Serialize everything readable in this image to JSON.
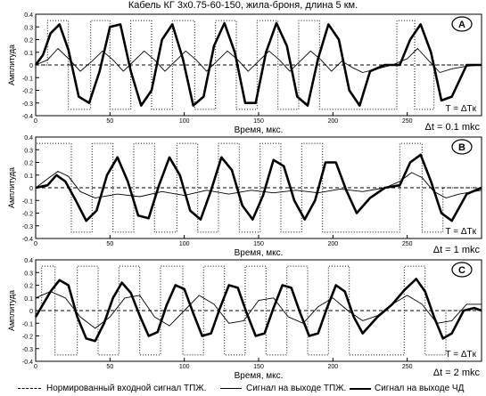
{
  "title": "Кабель КГ 3х0.75-60-150, жила-броня, длина 5 км.",
  "legend": {
    "input": "Нормированный входной сигнал ТПЖ.",
    "tpzh": "Сигнал на выходе ТПЖ.",
    "chd": "Сигнал на выходе  ЧД"
  },
  "colors": {
    "line": "#000000",
    "background": "#ffffff"
  },
  "chart_data": [
    {
      "type": "line",
      "panel_label": "A",
      "xlabel": "Время,  мкс.",
      "ylabel": "Амплитуда",
      "xlim": [
        0,
        300
      ],
      "ylim": [
        -0.4,
        0.4
      ],
      "x_ticks": [
        0,
        50,
        100,
        150,
        200,
        250
      ],
      "y_ticks": [
        0.4,
        0.3,
        0.2,
        0.1,
        0,
        -0.1,
        -0.2,
        -0.3,
        -0.4
      ],
      "grid": false,
      "annotation_T": "T = ΔTк",
      "annotation_dt": "Δt = 0.1 mkc",
      "series": [
        {
          "style": "dotted",
          "x": [
            0,
            8,
            8,
            22,
            22,
            37,
            37,
            50,
            50,
            64,
            64,
            78,
            78,
            92,
            92,
            107,
            107,
            121,
            121,
            135,
            135,
            149,
            149,
            163,
            163,
            177,
            177,
            191,
            191,
            205,
            205,
            243,
            243,
            255,
            255,
            268,
            268,
            300
          ],
          "values": [
            0,
            0,
            0.35,
            0.35,
            -0.35,
            -0.35,
            0.35,
            0.35,
            -0.35,
            -0.35,
            0.35,
            0.35,
            -0.35,
            -0.35,
            0.35,
            0.35,
            -0.35,
            -0.35,
            0.35,
            0.35,
            -0.35,
            -0.35,
            0.35,
            0.35,
            -0.35,
            -0.35,
            0.35,
            0.35,
            -0.35,
            -0.35,
            -0.35,
            -0.35,
            0.35,
            0.35,
            -0.35,
            -0.35,
            0,
            0
          ]
        },
        {
          "style": "thin",
          "x": [
            0,
            8,
            15,
            23,
            30,
            38,
            45,
            52,
            59,
            66,
            73,
            80,
            87,
            94,
            101,
            108,
            115,
            122,
            129,
            136,
            143,
            150,
            157,
            164,
            171,
            178,
            185,
            192,
            199,
            206,
            213,
            220,
            230,
            240,
            250,
            257,
            264,
            272,
            280,
            290,
            300
          ],
          "values": [
            0,
            0.04,
            0.13,
            0.04,
            -0.05,
            0.03,
            0.11,
            0.04,
            -0.05,
            0.03,
            0.11,
            0.04,
            -0.05,
            0.03,
            0.11,
            0.04,
            -0.05,
            0.03,
            0.11,
            0.04,
            -0.05,
            0.03,
            0.11,
            0.04,
            -0.05,
            0.03,
            0.11,
            0.04,
            -0.05,
            0.03,
            -0.02,
            -0.06,
            -0.03,
            0.0,
            0.05,
            0.13,
            0.04,
            -0.06,
            -0.03,
            -0.01,
            0
          ]
        },
        {
          "style": "thick",
          "x": [
            0,
            5,
            10,
            16,
            22,
            29,
            36,
            43,
            50,
            57,
            64,
            71,
            78,
            85,
            92,
            99,
            106,
            113,
            120,
            127,
            134,
            141,
            148,
            155,
            162,
            169,
            176,
            183,
            190,
            197,
            204,
            211,
            218,
            225,
            235,
            245,
            252,
            259,
            266,
            273,
            280,
            290,
            300
          ],
          "values": [
            0,
            0.08,
            0.25,
            0.32,
            0.12,
            -0.25,
            -0.3,
            -0.05,
            0.3,
            0.32,
            -0.05,
            -0.32,
            -0.2,
            0.2,
            0.32,
            0.05,
            -0.32,
            -0.25,
            0.15,
            0.33,
            0.1,
            -0.3,
            -0.3,
            0.1,
            0.33,
            0.15,
            -0.25,
            -0.32,
            0.05,
            0.32,
            0.2,
            -0.2,
            -0.32,
            -0.05,
            0.0,
            0.0,
            0.2,
            0.32,
            0.1,
            -0.28,
            -0.25,
            0.0,
            0
          ]
        },
        {
          "style": "dashed",
          "x": [
            0,
            300
          ],
          "values": [
            0,
            0
          ]
        }
      ]
    },
    {
      "type": "line",
      "panel_label": "B",
      "xlabel": "Время,  мкс.",
      "ylabel": "Амплитуда",
      "xlim": [
        0,
        300
      ],
      "ylim": [
        -0.4,
        0.4
      ],
      "x_ticks": [
        0,
        50,
        100,
        150,
        200,
        250
      ],
      "y_ticks": [
        0.4,
        0.3,
        0.2,
        0.1,
        0,
        -0.1,
        -0.2,
        -0.3,
        -0.4
      ],
      "grid": false,
      "annotation_T": "T = ΔTк",
      "annotation_dt": "Δt = 1 mkc",
      "series": [
        {
          "style": "dotted",
          "x": [
            0,
            0,
            10,
            10,
            24,
            24,
            38,
            38,
            52,
            52,
            66,
            66,
            80,
            80,
            95,
            95,
            109,
            109,
            123,
            123,
            137,
            137,
            151,
            151,
            165,
            165,
            179,
            179,
            193,
            193,
            207,
            207,
            245,
            245,
            260,
            260,
            274,
            274,
            300
          ],
          "values": [
            0,
            0.35,
            0.35,
            0.35,
            0.35,
            -0.35,
            -0.35,
            0.35,
            0.35,
            -0.35,
            -0.35,
            0.35,
            0.35,
            -0.35,
            -0.35,
            0.35,
            0.35,
            -0.35,
            -0.35,
            0.35,
            0.35,
            -0.35,
            -0.35,
            0.35,
            0.35,
            -0.35,
            -0.35,
            0.35,
            0.35,
            -0.35,
            -0.35,
            -0.35,
            -0.35,
            0.35,
            0.35,
            -0.35,
            -0.35,
            0,
            0
          ]
        },
        {
          "style": "thin",
          "x": [
            0,
            8,
            15,
            22,
            30,
            40,
            55,
            70,
            85,
            100,
            115,
            130,
            145,
            160,
            175,
            190,
            205,
            220,
            235,
            245,
            253,
            260,
            268,
            276,
            285,
            300
          ],
          "values": [
            0,
            0.07,
            0.13,
            0.09,
            -0.03,
            -0.08,
            -0.05,
            -0.07,
            -0.03,
            -0.06,
            -0.02,
            -0.05,
            -0.02,
            -0.04,
            -0.02,
            -0.04,
            -0.01,
            -0.03,
            0.0,
            0.05,
            0.12,
            0.08,
            -0.03,
            -0.08,
            -0.05,
            -0.02
          ]
        },
        {
          "style": "thick",
          "x": [
            0,
            8,
            14,
            20,
            27,
            34,
            41,
            48,
            55,
            62,
            69,
            76,
            83,
            90,
            97,
            104,
            111,
            118,
            125,
            132,
            139,
            146,
            153,
            160,
            167,
            174,
            181,
            188,
            195,
            202,
            209,
            216,
            225,
            235,
            245,
            252,
            259,
            266,
            273,
            280,
            290,
            300
          ],
          "values": [
            0,
            0.02,
            0.1,
            0.05,
            -0.1,
            -0.26,
            -0.18,
            0.1,
            0.24,
            0.05,
            -0.22,
            -0.24,
            0.02,
            0.24,
            0.1,
            -0.18,
            -0.25,
            -0.02,
            0.24,
            0.14,
            -0.14,
            -0.25,
            -0.06,
            0.22,
            0.17,
            -0.1,
            -0.25,
            -0.1,
            0.2,
            0.2,
            -0.02,
            -0.2,
            -0.08,
            0.0,
            0.02,
            0.2,
            0.26,
            0.05,
            -0.2,
            -0.26,
            -0.05,
            0
          ]
        },
        {
          "style": "dashed",
          "x": [
            0,
            300
          ],
          "values": [
            0,
            0
          ]
        }
      ]
    },
    {
      "type": "line",
      "panel_label": "C",
      "xlabel": "Время,  мкс.",
      "ylabel": "Амплитуда",
      "xlim": [
        0,
        300
      ],
      "ylim": [
        -0.4,
        0.4
      ],
      "x_ticks": [
        0,
        50,
        100,
        150,
        200,
        250
      ],
      "y_ticks": [
        0.4,
        0.3,
        0.2,
        0.1,
        0,
        -0.1,
        -0.2,
        -0.3,
        -0.4
      ],
      "grid": false,
      "annotation_T": "T = ΔTк",
      "annotation_dt": "Δt = 2 mkc",
      "series": [
        {
          "style": "dotted",
          "x": [
            0,
            4,
            4,
            13,
            13,
            28,
            28,
            42,
            42,
            56,
            56,
            70,
            70,
            84,
            84,
            99,
            99,
            113,
            113,
            127,
            127,
            141,
            141,
            155,
            155,
            169,
            169,
            183,
            183,
            197,
            197,
            211,
            211,
            248,
            248,
            262,
            262,
            276,
            276,
            300
          ],
          "values": [
            0,
            0,
            0.35,
            0.35,
            -0.35,
            -0.35,
            0.35,
            0.35,
            -0.35,
            -0.35,
            0.35,
            0.35,
            -0.35,
            -0.35,
            0.35,
            0.35,
            -0.35,
            -0.35,
            0.35,
            0.35,
            -0.35,
            -0.35,
            0.35,
            0.35,
            -0.35,
            -0.35,
            0.35,
            0.35,
            -0.35,
            -0.35,
            0.35,
            0.35,
            -0.35,
            -0.35,
            0.35,
            0.35,
            -0.35,
            -0.35,
            0,
            0
          ]
        },
        {
          "style": "thin",
          "x": [
            0,
            10,
            20,
            30,
            40,
            50,
            60,
            70,
            80,
            90,
            100,
            110,
            120,
            130,
            140,
            150,
            160,
            170,
            180,
            190,
            200,
            210,
            220,
            230,
            240,
            250,
            260,
            270,
            280,
            290,
            300
          ],
          "values": [
            0.1,
            0.15,
            0.1,
            -0.05,
            -0.14,
            -0.05,
            0.1,
            0.12,
            -0.05,
            -0.12,
            0.0,
            0.12,
            0.05,
            -0.1,
            -0.08,
            0.08,
            0.1,
            -0.05,
            -0.1,
            0.03,
            0.1,
            0.0,
            -0.08,
            -0.04,
            0.05,
            0.12,
            0.05,
            -0.1,
            -0.08,
            0.05,
            0.05
          ]
        },
        {
          "style": "thick",
          "x": [
            0,
            5,
            10,
            16,
            22,
            28,
            34,
            40,
            46,
            52,
            58,
            64,
            70,
            76,
            82,
            88,
            94,
            100,
            106,
            112,
            118,
            124,
            130,
            136,
            142,
            148,
            154,
            160,
            166,
            172,
            178,
            184,
            190,
            196,
            202,
            208,
            214,
            220,
            230,
            240,
            248,
            256,
            262,
            268,
            274,
            280,
            288,
            295,
            300
          ],
          "values": [
            -0.05,
            0.05,
            0.15,
            0.24,
            0.2,
            -0.05,
            -0.22,
            -0.24,
            -0.1,
            0.1,
            0.22,
            0.14,
            -0.04,
            -0.2,
            -0.17,
            0.04,
            0.2,
            0.17,
            -0.02,
            -0.2,
            -0.18,
            0.02,
            0.2,
            0.18,
            -0.02,
            -0.2,
            -0.18,
            0.02,
            0.2,
            0.18,
            -0.02,
            -0.2,
            -0.18,
            0.02,
            0.2,
            0.15,
            -0.05,
            -0.18,
            -0.05,
            0.05,
            0.16,
            0.25,
            0.15,
            -0.05,
            -0.22,
            -0.18,
            0.0,
            0.02,
            0.0
          ]
        },
        {
          "style": "dashed",
          "x": [
            0,
            300
          ],
          "values": [
            0,
            0
          ]
        }
      ]
    }
  ]
}
